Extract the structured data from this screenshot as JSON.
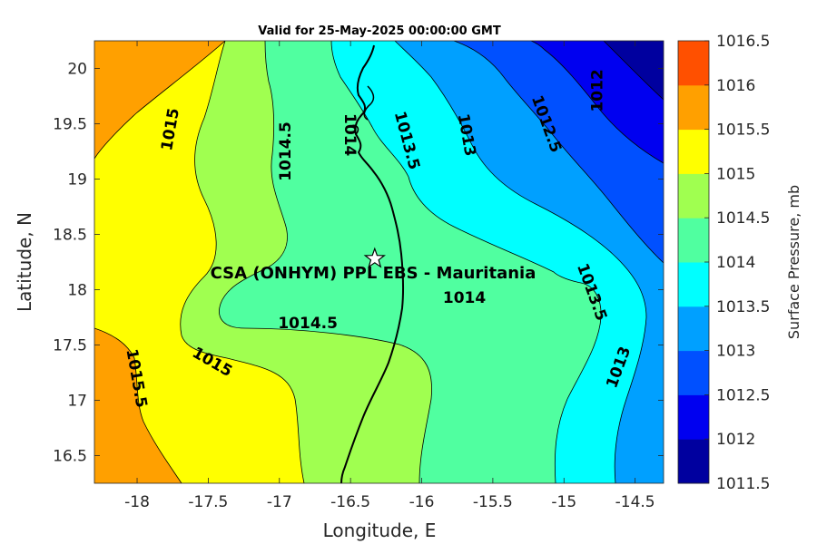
{
  "map": {
    "title": "Valid for 25-May-2025 00:00:00 GMT",
    "xlabel": "Longitude, E",
    "ylabel": "Latitude, N",
    "xlim": [
      -18.3,
      -14.3
    ],
    "ylim": [
      16.25,
      20.25
    ],
    "xticks": [
      -18,
      -17.5,
      -17,
      -16.5,
      -16,
      -15.5,
      -15,
      -14.5
    ],
    "yticks": [
      16.5,
      17,
      17.5,
      18,
      18.5,
      19,
      19.5,
      20
    ],
    "site": {
      "name": "CSA (ONHYM) PPL EBS  - Mauritania",
      "lon": -16.33,
      "lat": 18.28
    }
  },
  "colorbar": {
    "label": "Surface Pressure, mb",
    "levels": [
      1011.5,
      1012,
      1012.5,
      1013,
      1013.5,
      1014,
      1014.5,
      1015,
      1015.5,
      1016,
      1016.5
    ],
    "colors": [
      "#00009f",
      "#0000f0",
      "#0050ff",
      "#00a0ff",
      "#00ffff",
      "#50ffa0",
      "#a0ff50",
      "#ffff00",
      "#ffa000",
      "#ff5000",
      "#ff0000"
    ]
  },
  "contour_labels": [
    {
      "text": "1015",
      "lon": -17.77,
      "lat": 19.45,
      "rot": -80
    },
    {
      "text": "1014.5",
      "lon": -16.96,
      "lat": 19.25,
      "rot": -90
    },
    {
      "text": "1014",
      "lon": -16.5,
      "lat": 19.4,
      "rot": 90
    },
    {
      "text": "1013.5",
      "lon": -16.1,
      "lat": 19.35,
      "rot": 75
    },
    {
      "text": "1013",
      "lon": -15.68,
      "lat": 19.4,
      "rot": 80
    },
    {
      "text": "1012.5",
      "lon": -15.12,
      "lat": 19.5,
      "rot": 70
    },
    {
      "text": "1012",
      "lon": -14.77,
      "lat": 19.8,
      "rot": -90
    },
    {
      "text": "1014.5",
      "lon": -16.8,
      "lat": 17.7,
      "rot": 0
    },
    {
      "text": "1014",
      "lon": -15.7,
      "lat": 17.93,
      "rot": 0
    },
    {
      "text": "1013.5",
      "lon": -14.8,
      "lat": 17.98,
      "rot": 70
    },
    {
      "text": "1015",
      "lon": -17.47,
      "lat": 17.35,
      "rot": 30
    },
    {
      "text": "1015.5",
      "lon": -18.0,
      "lat": 17.2,
      "rot": 80
    },
    {
      "text": "1013",
      "lon": -14.62,
      "lat": 17.3,
      "rot": -70
    }
  ]
}
